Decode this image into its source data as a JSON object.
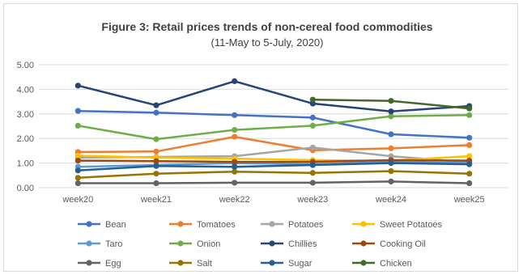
{
  "chart_data": {
    "type": "line",
    "title": "Figure 3: Retail prices trends of non-cereal food commodities",
    "subtitle": "(11-May to 5-July, 2020)",
    "xlabel": "",
    "ylabel": "",
    "categories": [
      "week20",
      "week21",
      "week22",
      "week23",
      "week24",
      "week25"
    ],
    "ylim": [
      0,
      5
    ],
    "yticks": [
      "0.00",
      "1.00",
      "2.00",
      "3.00",
      "4.00",
      "5.00"
    ],
    "grid": true,
    "legend_position": "bottom",
    "series": [
      {
        "name": "Bean",
        "color": "#4472C4",
        "values": [
          3.12,
          3.05,
          2.95,
          2.85,
          2.17,
          2.03
        ]
      },
      {
        "name": "Tomatoes",
        "color": "#ED7D31",
        "values": [
          1.45,
          1.47,
          2.07,
          1.52,
          1.6,
          1.73
        ]
      },
      {
        "name": "Potatoes",
        "color": "#A5A5A5",
        "values": [
          1.22,
          1.25,
          1.28,
          1.63,
          1.28,
          1.03
        ]
      },
      {
        "name": "Sweet Potatoes",
        "color": "#FFC000",
        "values": [
          1.3,
          1.22,
          1.18,
          1.12,
          1.1,
          1.28
        ]
      },
      {
        "name": "Taro",
        "color": "#5B9BD5",
        "values": [
          0.85,
          0.92,
          1.0,
          0.95,
          1.05,
          1.0
        ]
      },
      {
        "name": "Onion",
        "color": "#70AD47",
        "values": [
          2.52,
          1.97,
          2.35,
          2.52,
          2.9,
          2.95
        ]
      },
      {
        "name": "Chillies",
        "color": "#264478",
        "values": [
          4.15,
          3.35,
          4.33,
          3.42,
          3.1,
          3.32
        ]
      },
      {
        "name": "Cooking Oil",
        "color": "#9E480E",
        "values": [
          1.1,
          1.08,
          1.05,
          1.05,
          1.12,
          1.1
        ]
      },
      {
        "name": "Egg",
        "color": "#636363",
        "values": [
          0.18,
          0.18,
          0.2,
          0.2,
          0.25,
          0.18
        ]
      },
      {
        "name": "Salt",
        "color": "#997300",
        "values": [
          0.4,
          0.57,
          0.65,
          0.6,
          0.67,
          0.57
        ]
      },
      {
        "name": "Sugar",
        "color": "#255E91",
        "values": [
          0.7,
          0.88,
          0.85,
          0.92,
          1.0,
          0.95
        ]
      },
      {
        "name": "Chicken",
        "color": "#43682B",
        "values": [
          null,
          null,
          null,
          3.58,
          3.53,
          3.22
        ]
      }
    ]
  }
}
